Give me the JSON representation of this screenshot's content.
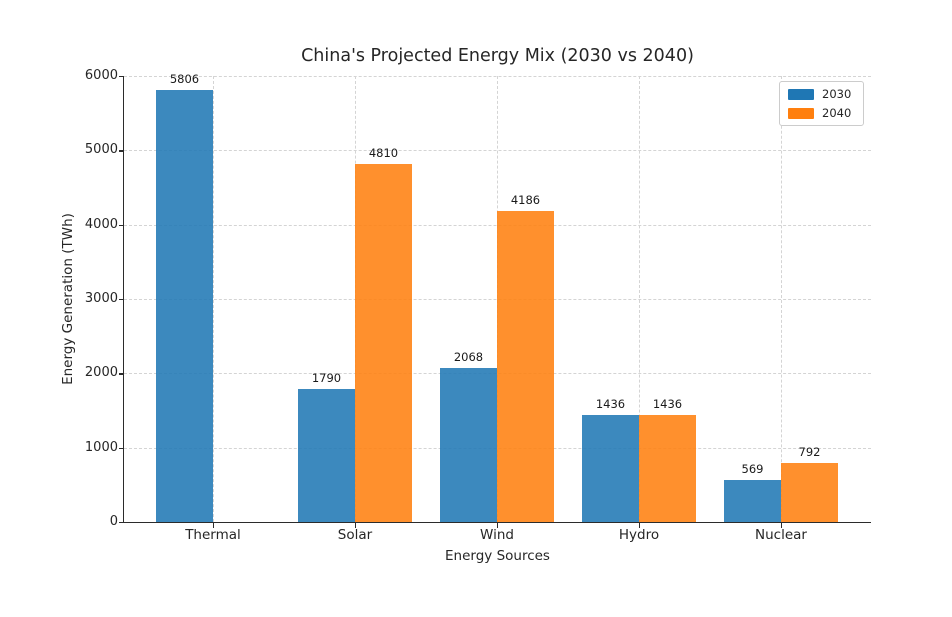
{
  "chart_data": {
    "type": "bar",
    "title": "China's Projected Energy Mix (2030 vs 2040)",
    "xlabel": "Energy Sources",
    "ylabel": "Energy Generation (TWh)",
    "categories": [
      "Thermal",
      "Solar",
      "Wind",
      "Hydro",
      "Nuclear"
    ],
    "series": [
      {
        "name": "2030",
        "color": "#1f77b4",
        "values": [
          5806,
          1790,
          2068,
          1436,
          569
        ]
      },
      {
        "name": "2040",
        "color": "#ff7f0e",
        "values": [
          0,
          4810,
          4186,
          1436,
          792
        ]
      }
    ],
    "bar_value_labels_shown": true,
    "zero_value_bars_hidden": true,
    "ylim": [
      0,
      6000
    ],
    "yticks": [
      0,
      1000,
      2000,
      3000,
      4000,
      5000,
      6000
    ],
    "grid": "dashed, horizontal and vertical",
    "legend_position": "upper right",
    "style": {
      "grid_color": "#d4d4d4",
      "axis_color": "#2b2b2b",
      "text_color": "#262626",
      "background": "#ffffff"
    }
  }
}
